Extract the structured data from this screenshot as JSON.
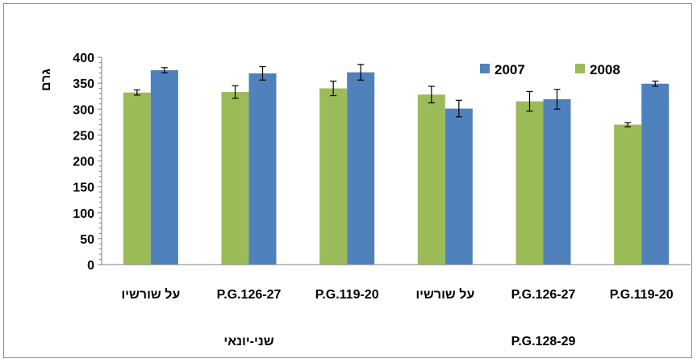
{
  "chart_data": {
    "type": "bar",
    "ylabel": "גרם",
    "xlabel": "",
    "title": "",
    "ylim": [
      0,
      400
    ],
    "yticks": [
      0,
      50,
      100,
      150,
      200,
      250,
      300,
      350,
      400
    ],
    "categories": [
      "P.G.119-20",
      "P.G.126-27",
      "על שורשיו",
      "P.G.119-20",
      "P.G.126-27",
      "על שורשיו"
    ],
    "groups": [
      {
        "label": "P.G.128-29",
        "categories": [
          "P.G.119-20",
          "P.G.126-27",
          "על שורשיו"
        ]
      },
      {
        "label": "שני-יונאי",
        "categories": [
          "P.G.119-20",
          "P.G.126-27",
          "על שורשיו"
        ]
      }
    ],
    "series": [
      {
        "name": "2008",
        "color": "#9bbb59",
        "values": [
          270,
          315,
          328,
          340,
          333,
          332
        ],
        "errors": [
          4,
          19,
          16,
          14,
          12,
          5
        ]
      },
      {
        "name": "2007",
        "color": "#4f81bd",
        "values": [
          349,
          319,
          301,
          371,
          369,
          375
        ],
        "errors": [
          5,
          19,
          16,
          15,
          13,
          5
        ]
      }
    ],
    "legend_position": "top-right",
    "grid": false
  }
}
